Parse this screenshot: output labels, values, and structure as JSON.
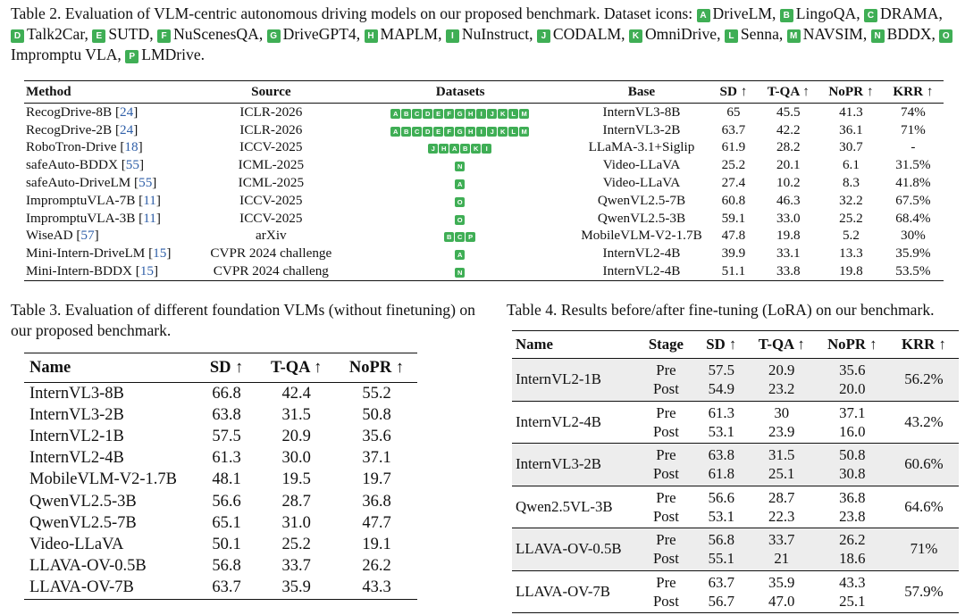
{
  "table2": {
    "caption_prefix": "Table 2. Evaluation of VLM-centric autonomous driving models on our proposed benchmark. Dataset icons: ",
    "icons": [
      {
        "key": "A",
        "name": "DriveLM"
      },
      {
        "key": "B",
        "name": "LingoQA"
      },
      {
        "key": "C",
        "name": "DRAMA"
      },
      {
        "key": "D",
        "name": "Talk2Car"
      },
      {
        "key": "E",
        "name": "SUTD"
      },
      {
        "key": "F",
        "name": "NuScenesQA"
      },
      {
        "key": "G",
        "name": "DriveGPT4"
      },
      {
        "key": "H",
        "name": "MAPLM"
      },
      {
        "key": "I",
        "name": "NuInstruct"
      },
      {
        "key": "J",
        "name": "CODALM"
      },
      {
        "key": "K",
        "name": "OmniDrive"
      },
      {
        "key": "L",
        "name": "Senna"
      },
      {
        "key": "M",
        "name": "NAVSIM"
      },
      {
        "key": "N",
        "name": "BDDX"
      },
      {
        "key": "O",
        "name": "Impromptu VLA"
      },
      {
        "key": "P",
        "name": "LMDrive"
      }
    ],
    "headers": [
      "Method",
      "Source",
      "Datasets",
      "Base",
      "SD ↑",
      "T-QA ↑",
      "NoPR ↑",
      "KRR ↑"
    ],
    "rows": [
      {
        "method": "RecogDrive-8B",
        "cite": "24",
        "source": "ICLR-2026",
        "datasets": [
          "A",
          "B",
          "C",
          "D",
          "E",
          "F",
          "G",
          "H",
          "I",
          "J",
          "K",
          "L",
          "M"
        ],
        "base": "InternVL3-8B",
        "sd": "65",
        "tqa": "45.5",
        "nopr": "41.3",
        "krr": "74%"
      },
      {
        "method": "RecogDrive-2B",
        "cite": "24",
        "source": "ICLR-2026",
        "datasets": [
          "A",
          "B",
          "C",
          "D",
          "E",
          "F",
          "G",
          "H",
          "I",
          "J",
          "K",
          "L",
          "M"
        ],
        "base": "InternVL3-2B",
        "sd": "63.7",
        "tqa": "42.2",
        "nopr": "36.1",
        "krr": "71%"
      },
      {
        "method": "RoboTron-Drive",
        "cite": "18",
        "source": "ICCV-2025",
        "datasets": [
          "J",
          "H",
          "A",
          "B",
          "K",
          "I"
        ],
        "base": "LLaMA-3.1+Siglip",
        "sd": "61.9",
        "tqa": "28.2",
        "nopr": "30.7",
        "krr": "-"
      },
      {
        "method": "safeAuto-BDDX",
        "cite": "55",
        "source": "ICML-2025",
        "datasets": [
          "N"
        ],
        "base": "Video-LLaVA",
        "sd": "25.2",
        "tqa": "20.1",
        "nopr": "6.1",
        "krr": "31.5%"
      },
      {
        "method": "safeAuto-DriveLM",
        "cite": "55",
        "source": "ICML-2025",
        "datasets": [
          "A"
        ],
        "base": "Video-LLaVA",
        "sd": "27.4",
        "tqa": "10.2",
        "nopr": "8.3",
        "krr": "41.8%"
      },
      {
        "method": "ImpromptuVLA-7B",
        "cite": "11",
        "source": "ICCV-2025",
        "datasets": [
          "O"
        ],
        "base": "QwenVL2.5-7B",
        "sd": "60.8",
        "tqa": "46.3",
        "nopr": "32.2",
        "krr": "67.5%"
      },
      {
        "method": "ImpromptuVLA-3B",
        "cite": "11",
        "source": "ICCV-2025",
        "datasets": [
          "O"
        ],
        "base": "QwenVL2.5-3B",
        "sd": "59.1",
        "tqa": "33.0",
        "nopr": "25.2",
        "krr": "68.4%"
      },
      {
        "method": "WiseAD",
        "cite": "57",
        "source": "arXiv",
        "datasets": [
          "B",
          "C",
          "P"
        ],
        "base": "MobileVLM-V2-1.7B",
        "sd": "47.8",
        "tqa": "19.8",
        "nopr": "5.2",
        "krr": "30%"
      },
      {
        "method": "Mini-Intern-DriveLM",
        "cite": "15",
        "source": "CVPR 2024 challenge",
        "datasets": [
          "A"
        ],
        "base": "InternVL2-4B",
        "sd": "39.9",
        "tqa": "33.1",
        "nopr": "13.3",
        "krr": "35.9%"
      },
      {
        "method": "Mini-Intern-BDDX",
        "cite": "15",
        "source": "CVPR 2024 challeng",
        "datasets": [
          "N"
        ],
        "base": "InternVL2-4B",
        "sd": "51.1",
        "tqa": "33.8",
        "nopr": "19.8",
        "krr": "53.5%"
      }
    ]
  },
  "table3": {
    "caption": "Table 3. Evaluation of different foundation VLMs (without finetuning) on our proposed benchmark.",
    "headers": [
      "Name",
      "SD ↑",
      "T-QA ↑",
      "NoPR ↑"
    ],
    "rows": [
      {
        "name": "InternVL3-8B",
        "sd": "66.8",
        "tqa": "42.4",
        "nopr": "55.2"
      },
      {
        "name": "InternVL3-2B",
        "sd": "63.8",
        "tqa": "31.5",
        "nopr": "50.8"
      },
      {
        "name": "InternVL2-1B",
        "sd": "57.5",
        "tqa": "20.9",
        "nopr": "35.6"
      },
      {
        "name": "InternVL2-4B",
        "sd": "61.3",
        "tqa": "30.0",
        "nopr": "37.1"
      },
      {
        "name": "MobileVLM-V2-1.7B",
        "sd": "48.1",
        "tqa": "19.5",
        "nopr": "19.7"
      },
      {
        "name": "QwenVL2.5-3B",
        "sd": "56.6",
        "tqa": "28.7",
        "nopr": "36.8"
      },
      {
        "name": "QwenVL2.5-7B",
        "sd": "65.1",
        "tqa": "31.0",
        "nopr": "47.7"
      },
      {
        "name": "Video-LLaVA",
        "sd": "50.1",
        "tqa": "25.2",
        "nopr": "19.1"
      },
      {
        "name": "LLAVA-OV-0.5B",
        "sd": "56.8",
        "tqa": "33.7",
        "nopr": "26.2"
      },
      {
        "name": "LLAVA-OV-7B",
        "sd": "63.7",
        "tqa": "35.9",
        "nopr": "43.3"
      }
    ]
  },
  "table4": {
    "caption": "Table 4. Results before/after fine-tuning (LoRA) on our benchmark.",
    "headers": [
      "Name",
      "Stage",
      "SD ↑",
      "T-QA ↑",
      "NoPR ↑",
      "KRR ↑"
    ],
    "rows": [
      {
        "name": "InternVL2-1B",
        "stage_pre": "Pre",
        "stage_post": "Post",
        "sd_pre": "57.5",
        "sd_post": "54.9",
        "tqa_pre": "20.9",
        "tqa_post": "23.2",
        "nopr_pre": "35.6",
        "nopr_post": "20.0",
        "krr": "56.2%"
      },
      {
        "name": "InternVL2-4B",
        "stage_pre": "Pre",
        "stage_post": "Post",
        "sd_pre": "61.3",
        "sd_post": "53.1",
        "tqa_pre": "30",
        "tqa_post": "23.9",
        "nopr_pre": "37.1",
        "nopr_post": "16.0",
        "krr": "43.2%"
      },
      {
        "name": "InternVL3-2B",
        "stage_pre": "Pre",
        "stage_post": "Post",
        "sd_pre": "63.8",
        "sd_post": "61.8",
        "tqa_pre": "31.5",
        "tqa_post": "25.1",
        "nopr_pre": "50.8",
        "nopr_post": "30.8",
        "krr": "60.6%"
      },
      {
        "name": "Qwen2.5VL-3B",
        "stage_pre": "Pre",
        "stage_post": "Post",
        "sd_pre": "56.6",
        "sd_post": "53.1",
        "tqa_pre": "28.7",
        "tqa_post": "22.3",
        "nopr_pre": "36.8",
        "nopr_post": "23.8",
        "krr": "64.6%"
      },
      {
        "name": "LLAVA-OV-0.5B",
        "stage_pre": "Pre",
        "stage_post": "Post",
        "sd_pre": "56.8",
        "sd_post": "55.1",
        "tqa_pre": "33.7",
        "tqa_post": "21",
        "nopr_pre": "26.2",
        "nopr_post": "18.6",
        "krr": "71%"
      },
      {
        "name": "LLAVA-OV-7B",
        "stage_pre": "Pre",
        "stage_post": "Post",
        "sd_pre": "63.7",
        "sd_post": "56.7",
        "tqa_pre": "35.9",
        "tqa_post": "47.0",
        "nopr_pre": "43.3",
        "nopr_post": "25.1",
        "krr": "57.9%"
      }
    ]
  }
}
